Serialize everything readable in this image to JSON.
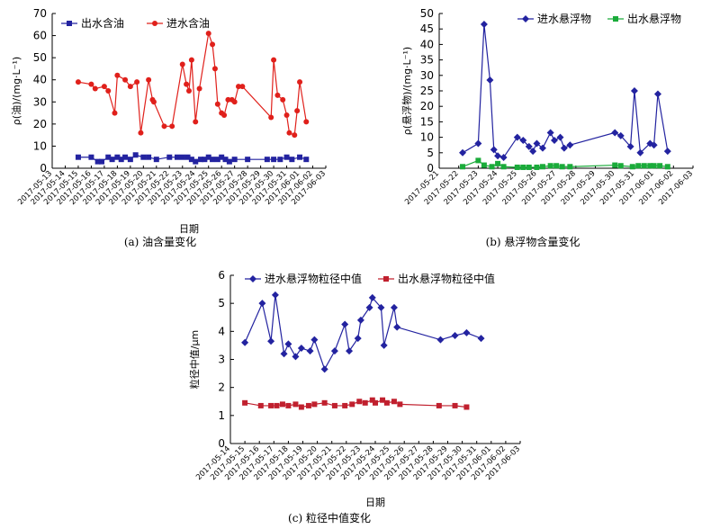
{
  "chart_data": [
    {
      "id": "a",
      "type": "line",
      "caption": "(a) 油含量变化",
      "xlabel": "日期",
      "ylabel": "ρ(油)/(mg·L⁻¹)",
      "ylim": [
        0,
        70
      ],
      "yticks": [
        0,
        10,
        20,
        30,
        40,
        50,
        60,
        70
      ],
      "xlim": [
        "2017-05-13",
        "2017-06-03"
      ],
      "legend_position": "top-left",
      "series": [
        {
          "name": "出水含油",
          "color": "#2323a0",
          "marker": "square",
          "points": [
            [
              "2017-05-15",
              5
            ],
            [
              "2017-05-16",
              5
            ],
            [
              "2017-05-16.5",
              3
            ],
            [
              "2017-05-16.8",
              3
            ],
            [
              "2017-05-17.3",
              5
            ],
            [
              "2017-05-17.6",
              4
            ],
            [
              "2017-05-18",
              5
            ],
            [
              "2017-05-18.3",
              4
            ],
            [
              "2017-05-18.6",
              5
            ],
            [
              "2017-05-19",
              4
            ],
            [
              "2017-05-19.4",
              6
            ],
            [
              "2017-05-20",
              5
            ],
            [
              "2017-05-20.4",
              5
            ],
            [
              "2017-05-21",
              4
            ],
            [
              "2017-05-22",
              5
            ],
            [
              "2017-05-22.6",
              5
            ],
            [
              "2017-05-23",
              5
            ],
            [
              "2017-05-23.4",
              5
            ],
            [
              "2017-05-23.7",
              4
            ],
            [
              "2017-05-24",
              3
            ],
            [
              "2017-05-24.4",
              4
            ],
            [
              "2017-05-24.7",
              4
            ],
            [
              "2017-05-25",
              5
            ],
            [
              "2017-05-25.3",
              4
            ],
            [
              "2017-05-25.7",
              4
            ],
            [
              "2017-05-26",
              5
            ],
            [
              "2017-05-26.3",
              4
            ],
            [
              "2017-05-26.6",
              3
            ],
            [
              "2017-05-27",
              4
            ],
            [
              "2017-05-28",
              4
            ],
            [
              "2017-05-29.5",
              4
            ],
            [
              "2017-05-30",
              4
            ],
            [
              "2017-05-30.5",
              4
            ],
            [
              "2017-05-31",
              5
            ],
            [
              "2017-05-31.4",
              4
            ],
            [
              "2017-06-01",
              5
            ],
            [
              "2017-06-01.5",
              4
            ]
          ]
        },
        {
          "name": "进水含油",
          "color": "#e0201b",
          "marker": "circle",
          "points": [
            [
              "2017-05-15",
              39
            ],
            [
              "2017-05-16",
              38
            ],
            [
              "2017-05-16.3",
              36
            ],
            [
              "2017-05-17",
              37
            ],
            [
              "2017-05-17.3",
              35
            ],
            [
              "2017-05-17.8",
              25
            ],
            [
              "2017-05-18",
              42
            ],
            [
              "2017-05-18.6",
              40
            ],
            [
              "2017-05-19",
              37
            ],
            [
              "2017-05-19.5",
              39
            ],
            [
              "2017-05-19.8",
              16
            ],
            [
              "2017-05-20.4",
              40
            ],
            [
              "2017-05-20.7",
              31
            ],
            [
              "2017-05-20.8",
              30
            ],
            [
              "2017-05-21.6",
              19
            ],
            [
              "2017-05-22.2",
              19
            ],
            [
              "2017-05-23",
              47
            ],
            [
              "2017-05-23.3",
              38
            ],
            [
              "2017-05-23.5",
              35
            ],
            [
              "2017-05-23.7",
              49
            ],
            [
              "2017-05-24",
              21
            ],
            [
              "2017-05-24.3",
              36
            ],
            [
              "2017-05-25",
              61
            ],
            [
              "2017-05-25.3",
              56
            ],
            [
              "2017-05-25.5",
              45
            ],
            [
              "2017-05-25.7",
              29
            ],
            [
              "2017-05-26",
              25
            ],
            [
              "2017-05-26.2",
              24
            ],
            [
              "2017-05-26.5",
              31
            ],
            [
              "2017-05-26.8",
              31
            ],
            [
              "2017-05-27",
              30
            ],
            [
              "2017-05-27.3",
              37
            ],
            [
              "2017-05-27.6",
              37
            ],
            [
              "2017-05-29.8",
              23
            ],
            [
              "2017-05-30",
              49
            ],
            [
              "2017-05-30.3",
              33
            ],
            [
              "2017-05-30.7",
              31
            ],
            [
              "2017-05-31",
              24
            ],
            [
              "2017-05-31.2",
              16
            ],
            [
              "2017-05-31.6",
              15
            ],
            [
              "2017-05-31.8",
              26
            ],
            [
              "2017-06-01",
              39
            ],
            [
              "2017-06-01.5",
              21
            ]
          ]
        }
      ]
    },
    {
      "id": "b",
      "type": "line",
      "caption": "(b) 悬浮物含量变化",
      "xlabel": "",
      "ylabel": "ρ(悬浮物)/(mg·L⁻¹)",
      "ylim": [
        0,
        50
      ],
      "yticks": [
        0,
        5,
        10,
        15,
        20,
        25,
        30,
        35,
        40,
        45,
        50
      ],
      "xlim": [
        "2017-05-21",
        "2017-06-03"
      ],
      "legend_position": "top-right",
      "series": [
        {
          "name": "进水悬浮物",
          "color": "#2323a0",
          "marker": "diamond",
          "points": [
            [
              "2017-05-22.2",
              5
            ],
            [
              "2017-05-23",
              8
            ],
            [
              "2017-05-23.3",
              46.5
            ],
            [
              "2017-05-23.6",
              28.5
            ],
            [
              "2017-05-23.8",
              6
            ],
            [
              "2017-05-24",
              4
            ],
            [
              "2017-05-24.3",
              3.5
            ],
            [
              "2017-05-25",
              10
            ],
            [
              "2017-05-25.3",
              9
            ],
            [
              "2017-05-25.6",
              7
            ],
            [
              "2017-05-25.8",
              5.5
            ],
            [
              "2017-05-26",
              8
            ],
            [
              "2017-05-26.3",
              6.5
            ],
            [
              "2017-05-26.7",
              11.5
            ],
            [
              "2017-05-26.9",
              9
            ],
            [
              "2017-05-27.2",
              10
            ],
            [
              "2017-05-27.4",
              6.5
            ],
            [
              "2017-05-27.7",
              7.5
            ],
            [
              "2017-05-30",
              11.5
            ],
            [
              "2017-05-30.3",
              10.5
            ],
            [
              "2017-05-30.8",
              7
            ],
            [
              "2017-05-31",
              25
            ],
            [
              "2017-05-31.3",
              5
            ],
            [
              "2017-05-31.8",
              8
            ],
            [
              "2017-06-01",
              7.5
            ],
            [
              "2017-06-01.2",
              24
            ],
            [
              "2017-06-01.7",
              5.5
            ]
          ]
        },
        {
          "name": "出水悬浮物",
          "color": "#1aab3a",
          "marker": "square",
          "points": [
            [
              "2017-05-22.2",
              0.5
            ],
            [
              "2017-05-23",
              2.5
            ],
            [
              "2017-05-23.3",
              1
            ],
            [
              "2017-05-23.7",
              0.5
            ],
            [
              "2017-05-24",
              1.5
            ],
            [
              "2017-05-24.3",
              0.5
            ],
            [
              "2017-05-25",
              0.3
            ],
            [
              "2017-05-25.3",
              0.3
            ],
            [
              "2017-05-25.6",
              0.3
            ],
            [
              "2017-05-26",
              0.3
            ],
            [
              "2017-05-26.3",
              0.5
            ],
            [
              "2017-05-26.7",
              0.8
            ],
            [
              "2017-05-27",
              0.8
            ],
            [
              "2017-05-27.3",
              0.5
            ],
            [
              "2017-05-27.7",
              0.5
            ],
            [
              "2017-05-30",
              1
            ],
            [
              "2017-05-30.3",
              0.8
            ],
            [
              "2017-05-30.9",
              0.5
            ],
            [
              "2017-05-31.2",
              0.8
            ],
            [
              "2017-05-31.5",
              0.8
            ],
            [
              "2017-05-31.8",
              0.8
            ],
            [
              "2017-06-01",
              0.8
            ],
            [
              "2017-06-01.3",
              0.8
            ],
            [
              "2017-06-01.7",
              0.5
            ]
          ]
        }
      ]
    },
    {
      "id": "c",
      "type": "line",
      "caption": "(c) 粒径中值变化",
      "xlabel": "日期",
      "ylabel": "粒径中值/μm",
      "ylim": [
        0,
        6
      ],
      "yticks": [
        0,
        1,
        2,
        3,
        4,
        5,
        6
      ],
      "xlim": [
        "2017-05-14",
        "2017-06-03"
      ],
      "legend_position": "top",
      "series": [
        {
          "name": "进水悬浮物粒径中值",
          "color": "#2323a0",
          "marker": "diamond",
          "points": [
            [
              "2017-05-15",
              3.6
            ],
            [
              "2017-05-16.2",
              5.0
            ],
            [
              "2017-05-16.8",
              3.65
            ],
            [
              "2017-05-17.1",
              5.3
            ],
            [
              "2017-05-17.7",
              3.2
            ],
            [
              "2017-05-18",
              3.55
            ],
            [
              "2017-05-18.5",
              3.1
            ],
            [
              "2017-05-18.9",
              3.4
            ],
            [
              "2017-05-19.5",
              3.3
            ],
            [
              "2017-05-19.8",
              3.7
            ],
            [
              "2017-05-20.5",
              2.65
            ],
            [
              "2017-05-21.2",
              3.3
            ],
            [
              "2017-05-21.9",
              4.25
            ],
            [
              "2017-05-22.2",
              3.3
            ],
            [
              "2017-05-22.8",
              3.75
            ],
            [
              "2017-05-23",
              4.4
            ],
            [
              "2017-05-23.6",
              4.85
            ],
            [
              "2017-05-23.8",
              5.2
            ],
            [
              "2017-05-24.4",
              4.85
            ],
            [
              "2017-05-24.6",
              3.5
            ],
            [
              "2017-05-25.3",
              4.85
            ],
            [
              "2017-05-25.5",
              4.15
            ],
            [
              "2017-05-28.5",
              3.7
            ],
            [
              "2017-05-29.5",
              3.85
            ],
            [
              "2017-05-30.3",
              3.95
            ],
            [
              "2017-05-31.3",
              3.75
            ]
          ]
        },
        {
          "name": "出水悬浮物粒径中值",
          "color": "#c0202e",
          "marker": "square",
          "points": [
            [
              "2017-05-15",
              1.45
            ],
            [
              "2017-05-16.1",
              1.35
            ],
            [
              "2017-05-16.8",
              1.35
            ],
            [
              "2017-05-17.2",
              1.35
            ],
            [
              "2017-05-17.6",
              1.4
            ],
            [
              "2017-05-18",
              1.35
            ],
            [
              "2017-05-18.5",
              1.4
            ],
            [
              "2017-05-18.9",
              1.3
            ],
            [
              "2017-05-19.4",
              1.35
            ],
            [
              "2017-05-19.8",
              1.4
            ],
            [
              "2017-05-20.5",
              1.45
            ],
            [
              "2017-05-21.2",
              1.35
            ],
            [
              "2017-05-21.9",
              1.35
            ],
            [
              "2017-05-22.4",
              1.4
            ],
            [
              "2017-05-22.9",
              1.5
            ],
            [
              "2017-05-23.3",
              1.45
            ],
            [
              "2017-05-23.8",
              1.55
            ],
            [
              "2017-05-24",
              1.45
            ],
            [
              "2017-05-24.5",
              1.55
            ],
            [
              "2017-05-24.8",
              1.45
            ],
            [
              "2017-05-25.3",
              1.5
            ],
            [
              "2017-05-25.7",
              1.4
            ],
            [
              "2017-05-28.4",
              1.35
            ],
            [
              "2017-05-29.5",
              1.35
            ],
            [
              "2017-05-30.3",
              1.3
            ]
          ]
        }
      ]
    }
  ]
}
